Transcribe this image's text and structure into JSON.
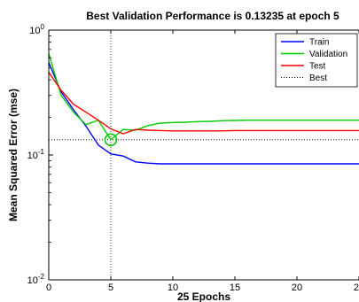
{
  "chart_data": {
    "type": "line",
    "title": "Best Validation Performance is 0.13235 at epoch 5",
    "xlabel": "25 Epochs",
    "ylabel": "Mean Squared Error  (mse)",
    "xlim": [
      0,
      25
    ],
    "ylim": [
      0.01,
      1
    ],
    "yscale": "log",
    "x_ticks": [
      {
        "value": 0,
        "label": "0"
      },
      {
        "value": 5,
        "label": "5"
      },
      {
        "value": 10,
        "label": "10"
      },
      {
        "value": 15,
        "label": "15"
      },
      {
        "value": 20,
        "label": "20"
      },
      {
        "value": 25,
        "label": "25"
      }
    ],
    "y_ticks": [
      {
        "value": 1,
        "base": "10",
        "exp": "0"
      },
      {
        "value": 0.1,
        "base": "10",
        "exp": "-1"
      },
      {
        "value": 0.01,
        "base": "10",
        "exp": "-2"
      }
    ],
    "x": [
      0,
      1,
      2,
      3,
      4,
      5,
      6,
      7,
      8,
      9,
      10,
      11,
      12,
      13,
      14,
      15,
      16,
      17,
      18,
      19,
      20,
      21,
      22,
      23,
      24,
      25
    ],
    "series": [
      {
        "name": "Train",
        "color": "#0000ff",
        "values": [
          0.55,
          0.32,
          0.23,
          0.17,
          0.12,
          0.102,
          0.098,
          0.088,
          0.086,
          0.085,
          0.085,
          0.085,
          0.085,
          0.085,
          0.085,
          0.085,
          0.085,
          0.085,
          0.085,
          0.085,
          0.085,
          0.085,
          0.085,
          0.085,
          0.085,
          0.085
        ]
      },
      {
        "name": "Validation",
        "color": "#00cc00",
        "values": [
          0.65,
          0.3,
          0.22,
          0.175,
          0.19,
          0.13235,
          0.16,
          0.158,
          0.172,
          0.18,
          0.182,
          0.183,
          0.185,
          0.186,
          0.188,
          0.189,
          0.19,
          0.19,
          0.19,
          0.19,
          0.19,
          0.19,
          0.19,
          0.19,
          0.19,
          0.19
        ]
      },
      {
        "name": "Test",
        "color": "#ff0000",
        "values": [
          0.46,
          0.33,
          0.255,
          0.22,
          0.19,
          0.162,
          0.148,
          0.16,
          0.158,
          0.157,
          0.156,
          0.156,
          0.156,
          0.156,
          0.156,
          0.157,
          0.157,
          0.157,
          0.157,
          0.157,
          0.157,
          0.157,
          0.157,
          0.157,
          0.157,
          0.157
        ]
      }
    ],
    "best": {
      "name": "Best",
      "epoch": 5,
      "value": 0.13235,
      "color": "#00cc00",
      "line_color": "#000000"
    },
    "legend": {
      "position": "top-right"
    },
    "grid": false
  }
}
